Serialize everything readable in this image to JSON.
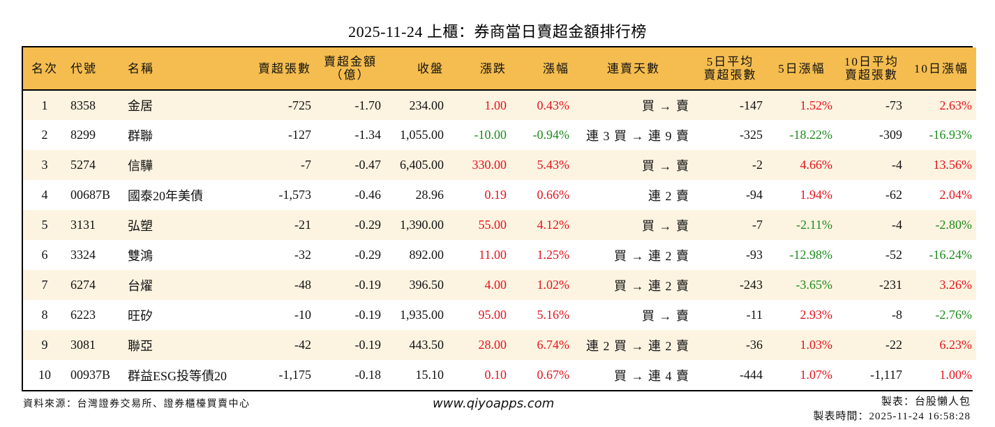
{
  "title": "2025-11-24 上櫃：券商當日賣超金額排行榜",
  "table": {
    "headers": [
      {
        "label": "名次",
        "align": "c"
      },
      {
        "label": "代號",
        "align": "l"
      },
      {
        "label": "名稱",
        "align": "l"
      },
      {
        "label": "賣超張數",
        "align": "r"
      },
      {
        "label": "賣超金額\n（億）",
        "align": "c"
      },
      {
        "label": "收盤",
        "align": "r"
      },
      {
        "label": "漲跌",
        "align": "r"
      },
      {
        "label": "漲幅",
        "align": "r"
      },
      {
        "label": "連賣天數",
        "align": "c"
      },
      {
        "label": "5日平均\n賣超張數",
        "align": "c"
      },
      {
        "label": "5日漲幅",
        "align": "c"
      },
      {
        "label": "10日平均\n賣超張數",
        "align": "c"
      },
      {
        "label": "10日漲幅",
        "align": "c"
      }
    ],
    "rows": [
      {
        "rank": "1",
        "code": "8358",
        "name": "金居",
        "sell_vol": "-725",
        "sell_amt": "-1.70",
        "close": "234.00",
        "change": "1.00",
        "pct": "0.43%",
        "streak": "買 → 賣",
        "avg5": "-147",
        "pct5": "1.52%",
        "avg10": "-73",
        "pct10": "2.63%"
      },
      {
        "rank": "2",
        "code": "8299",
        "name": "群聯",
        "sell_vol": "-127",
        "sell_amt": "-1.34",
        "close": "1,055.00",
        "change": "-10.00",
        "pct": "-0.94%",
        "streak": "連 3 買 → 連 9 賣",
        "avg5": "-325",
        "pct5": "-18.22%",
        "avg10": "-309",
        "pct10": "-16.93%"
      },
      {
        "rank": "3",
        "code": "5274",
        "name": "信驊",
        "sell_vol": "-7",
        "sell_amt": "-0.47",
        "close": "6,405.00",
        "change": "330.00",
        "pct": "5.43%",
        "streak": "買 → 賣",
        "avg5": "-2",
        "pct5": "4.66%",
        "avg10": "-4",
        "pct10": "13.56%"
      },
      {
        "rank": "4",
        "code": "00687B",
        "name": "國泰20年美債",
        "sell_vol": "-1,573",
        "sell_amt": "-0.46",
        "close": "28.96",
        "change": "0.19",
        "pct": "0.66%",
        "streak": "連 2 賣",
        "avg5": "-94",
        "pct5": "1.94%",
        "avg10": "-62",
        "pct10": "2.04%"
      },
      {
        "rank": "5",
        "code": "3131",
        "name": "弘塑",
        "sell_vol": "-21",
        "sell_amt": "-0.29",
        "close": "1,390.00",
        "change": "55.00",
        "pct": "4.12%",
        "streak": "買 → 賣",
        "avg5": "-7",
        "pct5": "-2.11%",
        "avg10": "-4",
        "pct10": "-2.80%"
      },
      {
        "rank": "6",
        "code": "3324",
        "name": "雙鴻",
        "sell_vol": "-32",
        "sell_amt": "-0.29",
        "close": "892.00",
        "change": "11.00",
        "pct": "1.25%",
        "streak": "買 → 連 2 賣",
        "avg5": "-93",
        "pct5": "-12.98%",
        "avg10": "-52",
        "pct10": "-16.24%"
      },
      {
        "rank": "7",
        "code": "6274",
        "name": "台燿",
        "sell_vol": "-48",
        "sell_amt": "-0.19",
        "close": "396.50",
        "change": "4.00",
        "pct": "1.02%",
        "streak": "買 → 連 2 賣",
        "avg5": "-243",
        "pct5": "-3.65%",
        "avg10": "-231",
        "pct10": "3.26%"
      },
      {
        "rank": "8",
        "code": "6223",
        "name": "旺矽",
        "sell_vol": "-10",
        "sell_amt": "-0.19",
        "close": "1,935.00",
        "change": "95.00",
        "pct": "5.16%",
        "streak": "買 → 賣",
        "avg5": "-11",
        "pct5": "2.93%",
        "avg10": "-8",
        "pct10": "-2.76%"
      },
      {
        "rank": "9",
        "code": "3081",
        "name": "聯亞",
        "sell_vol": "-42",
        "sell_amt": "-0.19",
        "close": "443.50",
        "change": "28.00",
        "pct": "6.74%",
        "streak": "連 2 買 → 連 2 賣",
        "avg5": "-36",
        "pct5": "1.03%",
        "avg10": "-22",
        "pct10": "6.23%"
      },
      {
        "rank": "10",
        "code": "00937B",
        "name": "群益ESG投等債20",
        "sell_vol": "-1,175",
        "sell_amt": "-0.18",
        "close": "15.10",
        "change": "0.10",
        "pct": "0.67%",
        "streak": "買 → 連 4 賣",
        "avg5": "-444",
        "pct5": "1.07%",
        "avg10": "-1,117",
        "pct10": "1.00%"
      }
    ]
  },
  "colors": {
    "header_bg": "#f5bd4f",
    "row_odd_bg": "#fdf3e1",
    "row_even_bg": "#ffffff",
    "up": "#e3121b",
    "down": "#1b8a1b"
  },
  "footer": {
    "source": "資料來源：台灣證券交易所、證券櫃檯買賣中心",
    "website": "www.qiyoapps.com",
    "maker": "製表：台股懶人包",
    "made_time": "製表時間：2025-11-24 16:58:28"
  }
}
